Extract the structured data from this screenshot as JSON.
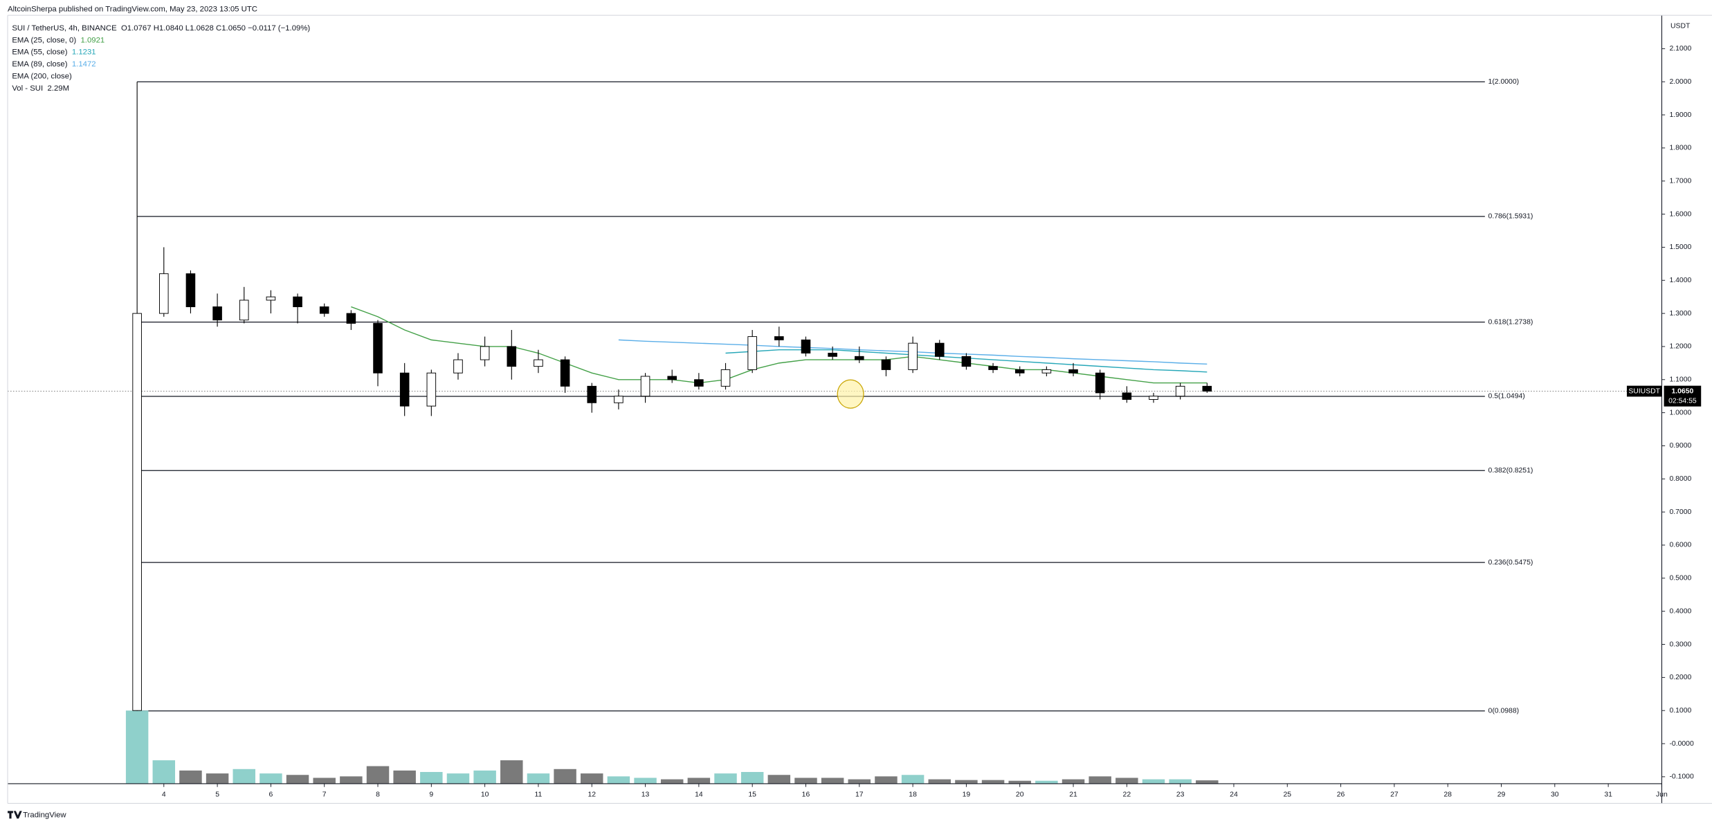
{
  "header": {
    "publisher": "AltcoinSherpa published on TradingView.com, May 23, 2023 13:05 UTC"
  },
  "chart_data": {
    "type": "candlestick",
    "title": "SUI / TetherUS, 4h, BINANCE",
    "ohlc_summary": "O1.0767 H1.0840 L1.0628 C1.0650 −0.0117 (−1.09%)",
    "x": [
      3.5,
      4,
      4.5,
      5,
      5.5,
      6,
      6.5,
      7,
      7.5,
      8,
      8.5,
      9,
      9.5,
      10,
      10.5,
      11,
      11.5,
      12,
      12.5,
      13,
      13.5,
      14,
      14.5,
      15,
      15.5,
      16,
      16.5,
      17,
      17.5,
      18,
      18.5,
      19,
      19.5,
      20,
      20.5,
      21,
      21.5,
      22,
      22.5,
      23,
      23.5
    ],
    "open": [
      0.1,
      1.3,
      1.42,
      1.32,
      1.28,
      1.34,
      1.35,
      1.32,
      1.3,
      1.27,
      1.12,
      1.02,
      1.12,
      1.16,
      1.2,
      1.14,
      1.16,
      1.08,
      1.03,
      1.05,
      1.11,
      1.1,
      1.08,
      1.13,
      1.23,
      1.22,
      1.18,
      1.17,
      1.16,
      1.13,
      1.21,
      1.17,
      1.14,
      1.13,
      1.12,
      1.13,
      1.12,
      1.06,
      1.04,
      1.05,
      1.08
    ],
    "high": [
      2.0,
      1.5,
      1.43,
      1.36,
      1.38,
      1.37,
      1.36,
      1.33,
      1.31,
      1.28,
      1.15,
      1.13,
      1.18,
      1.23,
      1.25,
      1.19,
      1.17,
      1.09,
      1.07,
      1.12,
      1.13,
      1.12,
      1.15,
      1.25,
      1.26,
      1.23,
      1.2,
      1.2,
      1.17,
      1.23,
      1.22,
      1.18,
      1.15,
      1.14,
      1.14,
      1.15,
      1.13,
      1.08,
      1.06,
      1.09,
      1.09
    ],
    "low": [
      0.0988,
      1.29,
      1.3,
      1.26,
      1.27,
      1.3,
      1.27,
      1.29,
      1.25,
      1.08,
      0.99,
      0.99,
      1.1,
      1.14,
      1.1,
      1.12,
      1.06,
      1.0,
      1.01,
      1.03,
      1.09,
      1.07,
      1.07,
      1.12,
      1.2,
      1.17,
      1.16,
      1.15,
      1.11,
      1.12,
      1.16,
      1.13,
      1.12,
      1.11,
      1.11,
      1.11,
      1.04,
      1.03,
      1.03,
      1.04,
      1.06
    ],
    "close": [
      1.3,
      1.42,
      1.32,
      1.28,
      1.34,
      1.35,
      1.32,
      1.3,
      1.27,
      1.12,
      1.02,
      1.12,
      1.16,
      1.2,
      1.14,
      1.16,
      1.08,
      1.03,
      1.05,
      1.11,
      1.1,
      1.08,
      1.13,
      1.23,
      1.22,
      1.18,
      1.17,
      1.16,
      1.13,
      1.21,
      1.17,
      1.14,
      1.13,
      1.12,
      1.13,
      1.12,
      1.06,
      1.04,
      1.05,
      1.08,
      1.065
    ],
    "volume": [
      50,
      16,
      9,
      7,
      10,
      7,
      6,
      4,
      5,
      12,
      9,
      8,
      7,
      9,
      16,
      7,
      10,
      7,
      5,
      4,
      3,
      4,
      7,
      8,
      6,
      4,
      4,
      3,
      5,
      6,
      3,
      2.5,
      2.5,
      2,
      2,
      3,
      5,
      4,
      3,
      3,
      2.29
    ],
    "up_color": "#ffffff",
    "down_color": "#000000",
    "volume_up_color": "#8fd0cb",
    "volume_down_color": "#7a7a7a",
    "indicators": [
      {
        "name": "EMA (25, close, 0)",
        "last": 1.0921,
        "color": "#43a047",
        "values": [
          null,
          null,
          null,
          null,
          null,
          null,
          null,
          null,
          1.32,
          1.29,
          1.25,
          1.22,
          1.21,
          1.2,
          1.2,
          1.18,
          1.15,
          1.12,
          1.1,
          1.1,
          1.1,
          1.09,
          1.1,
          1.13,
          1.15,
          1.16,
          1.16,
          1.16,
          1.16,
          1.17,
          1.16,
          1.15,
          1.14,
          1.13,
          1.13,
          1.12,
          1.11,
          1.1,
          1.09,
          1.09,
          1.09
        ]
      },
      {
        "name": "EMA (55, close)",
        "last": 1.1231,
        "color": "#26a7b8",
        "values": [
          null,
          null,
          null,
          null,
          null,
          null,
          null,
          null,
          null,
          null,
          null,
          null,
          null,
          null,
          null,
          null,
          null,
          null,
          null,
          null,
          null,
          null,
          1.18,
          1.185,
          1.19,
          1.19,
          1.19,
          1.185,
          1.18,
          1.175,
          1.17,
          1.165,
          1.16,
          1.155,
          1.15,
          1.145,
          1.14,
          1.135,
          1.13,
          1.127,
          1.123
        ]
      },
      {
        "name": "EMA (89, close)",
        "last": 1.1472,
        "color": "#5aaee8",
        "values": [
          null,
          null,
          null,
          null,
          null,
          null,
          null,
          null,
          null,
          null,
          null,
          null,
          null,
          null,
          null,
          null,
          null,
          null,
          1.22,
          1.216,
          1.213,
          1.21,
          1.207,
          1.204,
          1.2,
          1.197,
          1.194,
          1.19,
          1.187,
          1.184,
          1.18,
          1.177,
          1.174,
          1.17,
          1.167,
          1.163,
          1.16,
          1.157,
          1.154,
          1.15,
          1.147
        ]
      },
      {
        "name": "EMA (200, close)"
      }
    ],
    "volume_legend": {
      "name": "Vol - SUI",
      "last": "2.29M"
    },
    "fib_levels": [
      {
        "label": "1(2.0000)",
        "value": 2.0
      },
      {
        "label": "0.786(1.5931)",
        "value": 1.5931
      },
      {
        "label": "0.618(1.2738)",
        "value": 1.2738
      },
      {
        "label": "0.5(1.0494)",
        "value": 1.0494
      },
      {
        "label": "0.382(0.8251)",
        "value": 0.8251
      },
      {
        "label": "0.236(0.5475)",
        "value": 0.5475
      },
      {
        "label": "0(0.0988)",
        "value": 0.0988
      }
    ],
    "last_price": {
      "symbol": "SUIUSDT",
      "value": 1.065,
      "label": "1.0650",
      "countdown": "02:54:55"
    },
    "y_axis_unit": "USDT",
    "ylim": [
      -0.121,
      2.191
    ],
    "yticks": [
      {
        "value": -0.1,
        "label": "-0.1000"
      },
      {
        "value": 0,
        "label": "-0.0000"
      },
      {
        "value": 0.1,
        "label": "0.1000"
      },
      {
        "value": 0.2,
        "label": "0.2000"
      },
      {
        "value": 0.3,
        "label": "0.3000"
      },
      {
        "value": 0.4,
        "label": "0.4000"
      },
      {
        "value": 0.5,
        "label": "0.5000"
      },
      {
        "value": 0.6,
        "label": "0.6000"
      },
      {
        "value": 0.7,
        "label": "0.7000"
      },
      {
        "value": 0.8,
        "label": "0.8000"
      },
      {
        "value": 0.9,
        "label": "0.9000"
      },
      {
        "value": 1.0,
        "label": "1.0000"
      },
      {
        "value": 1.1,
        "label": "1.1000"
      },
      {
        "value": 1.2,
        "label": "1.2000"
      },
      {
        "value": 1.3,
        "label": "1.3000"
      },
      {
        "value": 1.4,
        "label": "1.4000"
      },
      {
        "value": 1.5,
        "label": "1.5000"
      },
      {
        "value": 1.6,
        "label": "1.6000"
      },
      {
        "value": 1.7,
        "label": "1.7000"
      },
      {
        "value": 1.8,
        "label": "1.8000"
      },
      {
        "value": 1.9,
        "label": "1.9000"
      },
      {
        "value": 2.0,
        "label": "2.0000"
      },
      {
        "value": 2.1,
        "label": "2.1000"
      }
    ],
    "xlim": [
      1.08,
      32
    ],
    "xticks": [
      4,
      5,
      6,
      7,
      8,
      9,
      10,
      11,
      12,
      13,
      14,
      15,
      16,
      17,
      18,
      19,
      20,
      21,
      22,
      23,
      24,
      25,
      26,
      27,
      28,
      29,
      30,
      31,
      {
        "value": 32,
        "label": "Jun"
      }
    ]
  },
  "footer": {
    "brand": "TradingView"
  }
}
